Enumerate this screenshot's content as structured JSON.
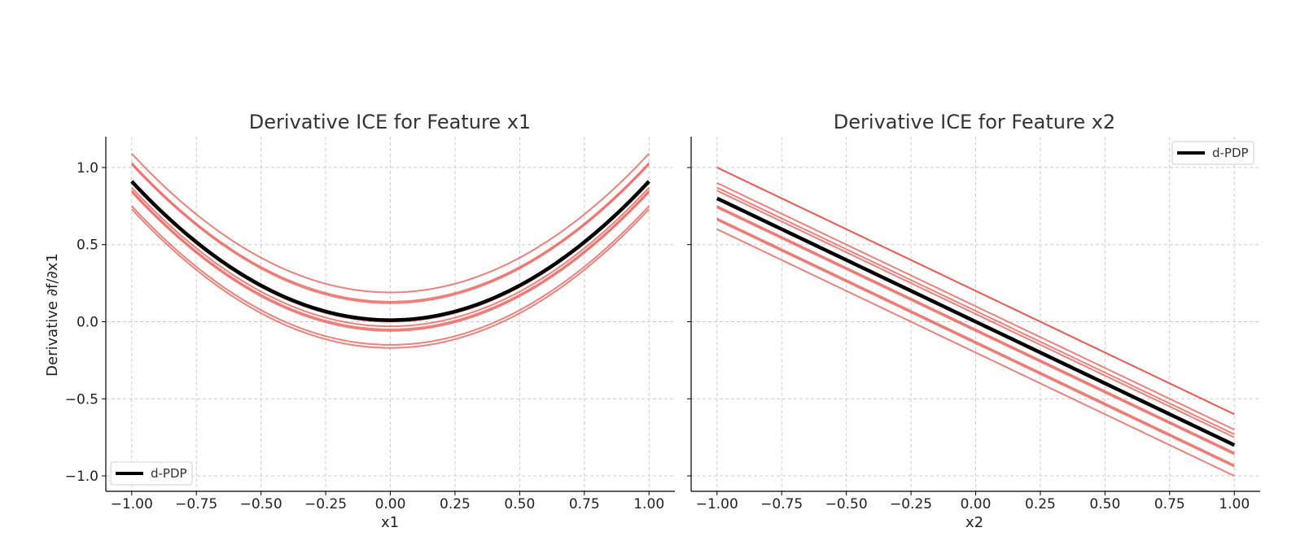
{
  "chart_data": [
    {
      "type": "line",
      "title": "Derivative ICE for Feature x1",
      "xlabel": "x1",
      "ylabel": "Derivative ∂f/∂x1",
      "xlim": [
        -1.1,
        1.1
      ],
      "ylim": [
        -1.1,
        1.2
      ],
      "xticks": [
        -1.0,
        -0.75,
        -0.5,
        -0.25,
        0.0,
        0.25,
        0.5,
        0.75,
        1.0
      ],
      "xtick_labels": [
        "−1.00",
        "−0.75",
        "−0.50",
        "−0.25",
        "0.00",
        "0.25",
        "0.50",
        "0.75",
        "1.00"
      ],
      "yticks": [
        -1.0,
        -0.5,
        0.0,
        0.5,
        1.0
      ],
      "ytick_labels": [
        "−1.0",
        "−0.5",
        "0.0",
        "0.5",
        "1.0"
      ],
      "grid": true,
      "legend": {
        "position": "lower-left",
        "label": "d-PDP"
      },
      "curve_form": "quadratic",
      "x_sample": [
        -1.0,
        -0.75,
        -0.5,
        -0.25,
        0.0,
        0.25,
        0.5,
        0.75,
        1.0
      ],
      "ice_offsets": [
        0.19,
        0.13,
        0.12,
        0.0,
        -0.03,
        -0.05,
        -0.06,
        -0.15,
        -0.17
      ],
      "ice_color": "#e8504a",
      "pdp_color": "#000000",
      "pdp": {
        "name": "d-PDP",
        "offset": 0.01
      }
    },
    {
      "type": "line",
      "title": "Derivative ICE for Feature x2",
      "xlabel": "x2",
      "ylabel": "",
      "xlim": [
        -1.1,
        1.1
      ],
      "ylim": [
        -1.1,
        1.2
      ],
      "xticks": [
        -1.0,
        -0.75,
        -0.5,
        -0.25,
        0.0,
        0.25,
        0.5,
        0.75,
        1.0
      ],
      "xtick_labels": [
        "−1.00",
        "−0.75",
        "−0.50",
        "−0.25",
        "0.00",
        "0.25",
        "0.50",
        "0.75",
        "1.00"
      ],
      "yticks": [
        -1.0,
        -0.5,
        0.0,
        0.5,
        1.0
      ],
      "ytick_labels": [],
      "grid": true,
      "legend": {
        "position": "top-right",
        "label": "d-PDP"
      },
      "curve_form": "linear",
      "x_sample": [
        -1.0,
        -0.75,
        -0.5,
        -0.25,
        0.0,
        0.25,
        0.5,
        0.75,
        1.0
      ],
      "ice_offsets": [
        0.2,
        0.2,
        0.1,
        0.07,
        0.05,
        -0.05,
        -0.06,
        -0.13,
        -0.14,
        -0.2
      ],
      "ice_color": "#e8504a",
      "pdp_color": "#000000",
      "pdp": {
        "name": "d-PDP",
        "offset": 0.0
      }
    }
  ]
}
